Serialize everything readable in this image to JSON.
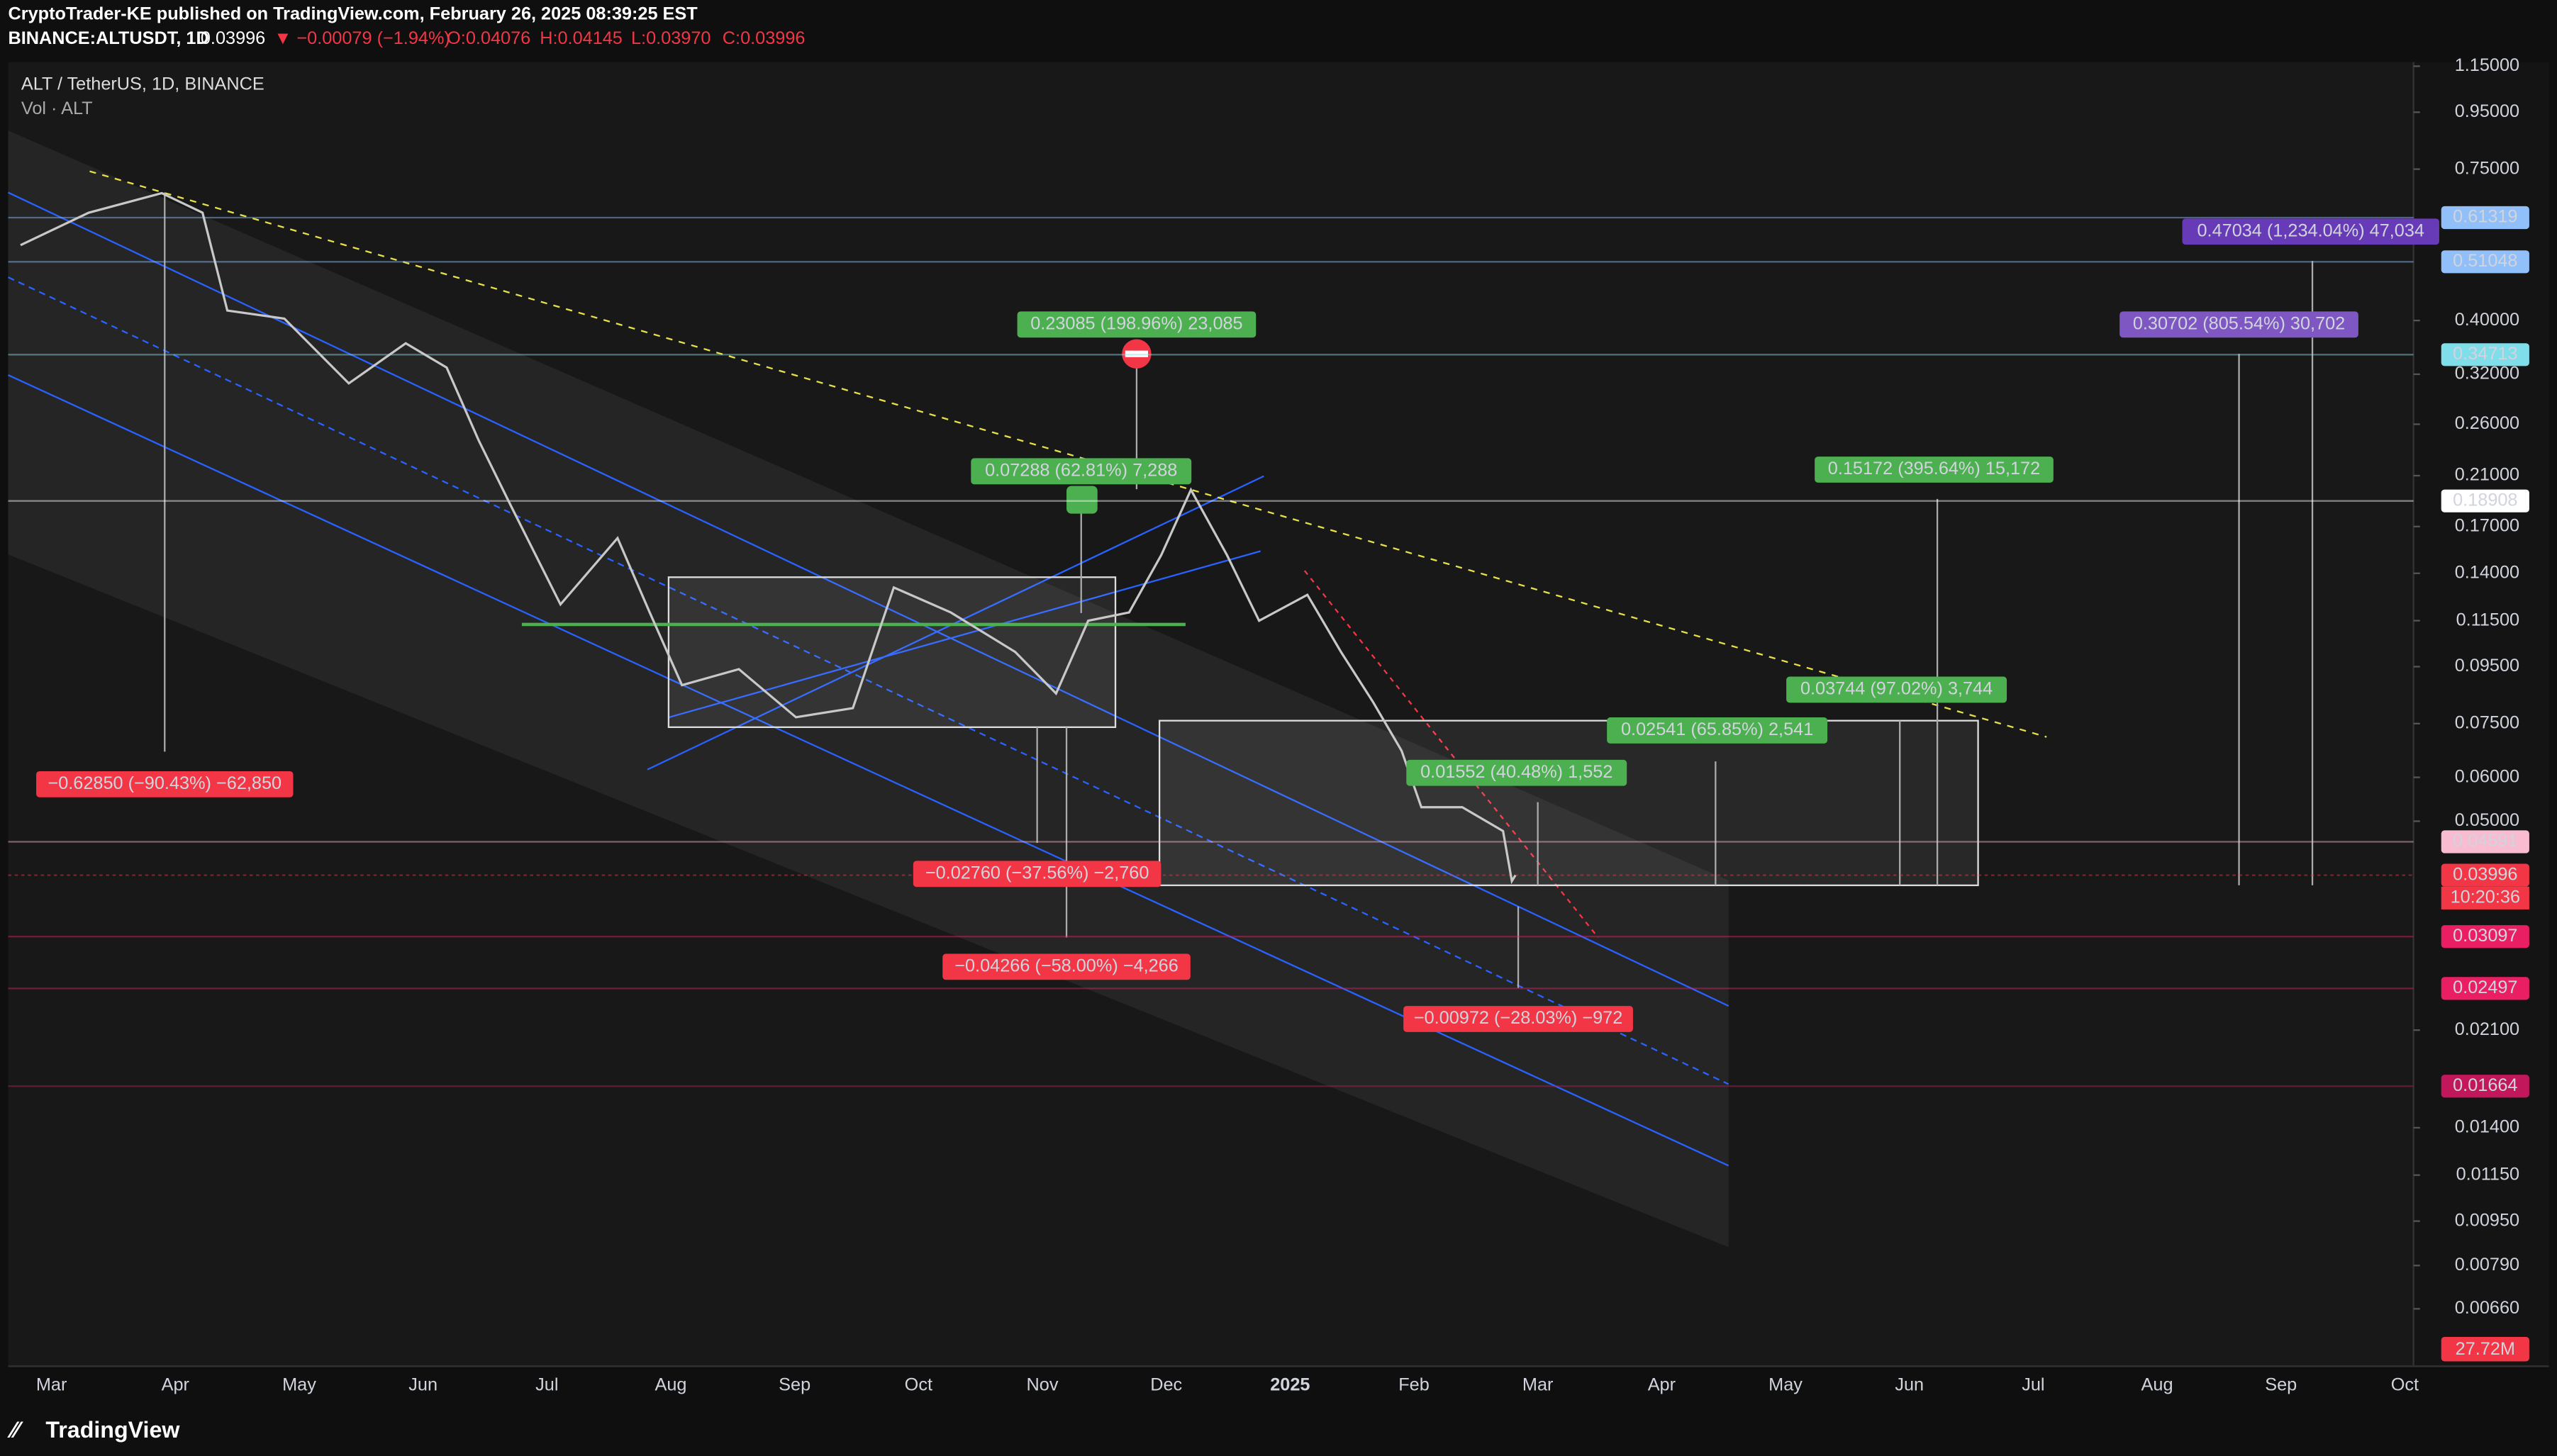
{
  "header": {
    "publisher": "CryptoTrader-KE published on TradingView.com, February 26, 2025 08:39:25 EST",
    "symbol": "BINANCE:ALTUSDT, 1D",
    "last": "0.03996",
    "change": "▼ −0.00079 (−1.94%)",
    "ohlc": [
      "O:0.04076",
      "H:0.04145",
      "L:0.03970",
      "C:0.03996"
    ]
  },
  "chart_data": {
    "type": "line",
    "title": "ALT / TetherUS, 1D, BINANCE",
    "subtitle": "Vol · ALT",
    "log_scale": true,
    "color": "#c8c8c8",
    "categories": [
      "Mar",
      "Apr",
      "May",
      "Jun",
      "Jul",
      "Aug",
      "Sep",
      "Oct",
      "Nov",
      "Dec",
      "2025",
      "Feb",
      "Mar",
      "Apr",
      "May",
      "Jun",
      "Jul",
      "Aug",
      "Sep",
      "Oct"
    ],
    "x": [
      -0.25,
      0.3,
      0.89,
      1.22,
      1.42,
      1.88,
      2.4,
      2.86,
      3.19,
      3.45,
      3.71,
      4.11,
      4.57,
      4.83,
      5.09,
      5.55,
      6.01,
      6.47,
      6.8,
      7.26,
      7.78,
      8.11,
      8.37,
      8.7,
      8.96,
      9.2,
      9.49,
      9.75,
      10.14,
      10.41,
      10.67,
      10.9,
      11.06,
      11.39,
      11.72,
      11.79,
      11.82
    ],
    "values": [
      0.547,
      0.626,
      0.679,
      0.626,
      0.417,
      0.403,
      0.308,
      0.364,
      0.329,
      0.243,
      0.185,
      0.123,
      0.162,
      0.119,
      0.088,
      0.094,
      0.077,
      0.08,
      0.132,
      0.119,
      0.101,
      0.085,
      0.115,
      0.119,
      0.151,
      0.198,
      0.151,
      0.115,
      0.128,
      0.101,
      0.082,
      0.067,
      0.053,
      0.053,
      0.048,
      0.039,
      0.03996
    ],
    "xlim": [
      -0.35,
      19.07
    ],
    "ylim": [
      0.0052,
      1.17
    ],
    "yticks": [
      {
        "value": 1.15,
        "label": "1.15000"
      },
      {
        "value": 0.95,
        "label": "0.95000"
      },
      {
        "value": 0.75,
        "label": "0.75000"
      },
      {
        "value": 0.4,
        "label": "0.40000"
      },
      {
        "value": 0.32,
        "label": "0.32000"
      },
      {
        "value": 0.26,
        "label": "0.26000"
      },
      {
        "value": 0.21,
        "label": "0.21000"
      },
      {
        "value": 0.17,
        "label": "0.17000"
      },
      {
        "value": 0.14,
        "label": "0.14000"
      },
      {
        "value": 0.115,
        "label": "0.11500"
      },
      {
        "value": 0.095,
        "label": "0.09500"
      },
      {
        "value": 0.075,
        "label": "0.07500"
      },
      {
        "value": 0.06,
        "label": "0.06000"
      },
      {
        "value": 0.05,
        "label": "0.05000"
      },
      {
        "value": 0.021,
        "label": "0.02100"
      },
      {
        "value": 0.014,
        "label": "0.01400"
      },
      {
        "value": 0.0115,
        "label": "0.01150"
      },
      {
        "value": 0.0095,
        "label": "0.00950"
      },
      {
        "value": 0.0079,
        "label": "0.00790"
      },
      {
        "value": 0.0066,
        "label": "0.00660"
      }
    ],
    "levels": [
      {
        "value": 0.61319,
        "color": "#90bff9"
      },
      {
        "value": 0.51048,
        "color": "#90bff9"
      },
      {
        "value": 0.34713,
        "color": "#80deea"
      },
      {
        "value": 0.18908,
        "color": "#ffffff"
      },
      {
        "value": 0.04591,
        "color": "#f8bbd0"
      },
      {
        "value": 0.03996,
        "color": "#f23645"
      },
      {
        "value": 0.03097,
        "color": "#e91e63"
      },
      {
        "value": 0.02497,
        "color": "#e91e63"
      },
      {
        "value": 0.01664,
        "color": "#c2185b"
      }
    ],
    "countdown": "10:20:36",
    "volume_label": "27.72M",
    "annotations": [
      {
        "text": "0.23085 (198.96%) 23,085",
        "color": "#4caf50"
      },
      {
        "text": "0.07288 (62.81%) 7,288",
        "color": "#4caf50"
      },
      {
        "text": "0.15172 (395.64%) 15,172",
        "color": "#4caf50"
      },
      {
        "text": "0.03744 (97.02%) 3,744",
        "color": "#4caf50"
      },
      {
        "text": "0.02541 (65.85%) 2,541",
        "color": "#4caf50"
      },
      {
        "text": "0.01552 (40.48%) 1,552",
        "color": "#4caf50"
      },
      {
        "text": "0.47034 (1,234.04%) 47,034",
        "color": "#673ab7"
      },
      {
        "text": "0.30702 (805.54%) 30,702",
        "color": "#7e57c2"
      },
      {
        "text": "−0.62850 (−90.43%) −62,850",
        "color": "#f23645"
      },
      {
        "text": "−0.02760 (−37.56%) −2,760",
        "color": "#f23645"
      },
      {
        "text": "−0.04266 (−58.00%) −4,266",
        "color": "#f23645"
      },
      {
        "text": "−0.00972 (−28.03%) −972",
        "color": "#f23645"
      }
    ]
  },
  "footer": {
    "brand": "TradingView"
  }
}
